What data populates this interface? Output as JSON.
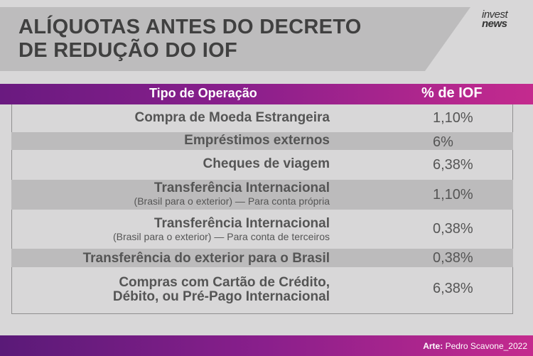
{
  "title": {
    "line1": "ALÍQUOTAS ANTES DO DECRETO",
    "line2": "DE REDUÇÃO DO IOF"
  },
  "brand": {
    "line1": "invest",
    "line2": "news"
  },
  "table": {
    "headers": {
      "operation": "Tipo de Operação",
      "iof": "% de IOF"
    },
    "rows": [
      {
        "op": "Compra de Moeda Estrangeira",
        "iof": "1,10%"
      },
      {
        "op": "Empréstimos externos",
        "iof": "6%"
      },
      {
        "op": "Cheques de viagem",
        "iof": "6,38%"
      },
      {
        "op": "Transferência Internacional",
        "sub": "(Brasil para o exterior) — Para conta própria",
        "iof": "1,10%"
      },
      {
        "op": "Transferência Internacional",
        "sub": "(Brasil para o exterior) — Para conta de terceiros",
        "iof": "0,38%"
      },
      {
        "op": "Transferência do exterior para o Brasil",
        "iof": "0,38%"
      },
      {
        "op": "Compras com Cartão de Crédito,",
        "op2": "Débito, ou Pré-Pago Internacional",
        "iof": "6,38%"
      }
    ]
  },
  "footer": {
    "credit_label": "Arte:",
    "credit_name": " Pedro Scavone_2022"
  },
  "colors": {
    "accent_start": "#6a1a80",
    "accent_end": "#c42a8e",
    "row_shade": "#bcbbbc",
    "background": "#d8d7d8"
  }
}
